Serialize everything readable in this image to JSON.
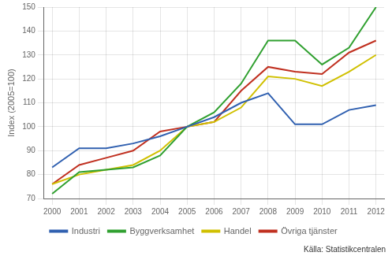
{
  "chart_data": {
    "type": "line",
    "x": [
      2000,
      2001,
      2002,
      2003,
      2004,
      2005,
      2006,
      2007,
      2008,
      2009,
      2010,
      2011,
      2012
    ],
    "series": [
      {
        "name": "Industri",
        "color": "#3060b0",
        "values": [
          83,
          91,
          91,
          93,
          96,
          100,
          104,
          110,
          114,
          101,
          101,
          107,
          109
        ]
      },
      {
        "name": "Byggverksamhet",
        "color": "#30a030",
        "values": [
          72,
          81,
          82,
          83,
          88,
          100,
          106,
          118,
          136,
          136,
          126,
          133,
          150
        ]
      },
      {
        "name": "Handel",
        "color": "#d0c000",
        "values": [
          76,
          80,
          82,
          84,
          90,
          100,
          102,
          108,
          121,
          120,
          117,
          123,
          130
        ]
      },
      {
        "name": "Övriga tjänster",
        "color": "#c03020",
        "values": [
          76,
          84,
          87,
          90,
          98,
          100,
          102,
          115,
          125,
          123,
          122,
          131,
          136
        ]
      }
    ],
    "y_label": "Index (2005=100)",
    "xlim": [
      1999.7,
      2012.3
    ],
    "xticks": [
      2000,
      2001,
      2002,
      2003,
      2004,
      2005,
      2006,
      2007,
      2008,
      2009,
      2010,
      2011,
      2012
    ],
    "ylim": [
      70,
      150
    ],
    "yticks": [
      70,
      80,
      90,
      100,
      110,
      120,
      130,
      140,
      150
    ],
    "grid": true,
    "legend": "bottom",
    "annotation": "Källa: Statistikcentralen"
  }
}
